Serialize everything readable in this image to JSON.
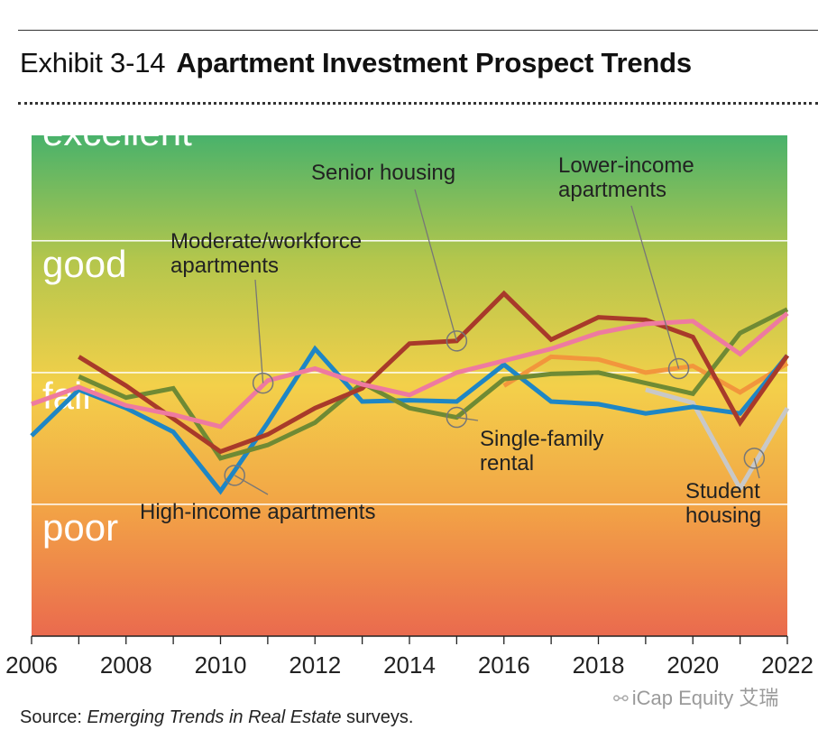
{
  "header": {
    "exhibit": "Exhibit 3-14",
    "title": "Apartment Investment Prospect Trends"
  },
  "source": {
    "prefix": "Source: ",
    "italic": "Emerging Trends in Real Estate",
    "suffix": " surveys."
  },
  "watermark": {
    "text": "iCap Equity 艾瑞",
    "icon": "wechat-icon"
  },
  "chart_data": {
    "type": "line",
    "title": "Apartment Investment Prospect Trends",
    "xlabel": "",
    "ylabel": "",
    "xlim": [
      2006,
      2022
    ],
    "ylim": [
      0.5,
      4.3
    ],
    "x_ticks": [
      2006,
      2008,
      2010,
      2012,
      2014,
      2016,
      2018,
      2020,
      2022
    ],
    "bands": [
      {
        "label": "excellent",
        "value": 4
      },
      {
        "label": "good",
        "value": 3
      },
      {
        "label": "fair",
        "value": 2
      },
      {
        "label": "poor",
        "value": 1
      }
    ],
    "grid": true,
    "background_gradient": [
      "#49b26b",
      "#b4c64c",
      "#f3d04a",
      "#f2a246",
      "#ea6a4e"
    ],
    "series": [
      {
        "name": "Student housing",
        "color": "#c8c8c8",
        "x": [
          2019,
          2020,
          2021,
          2022
        ],
        "y": [
          2.37,
          2.27,
          1.62,
          2.23
        ]
      },
      {
        "name": "Lower-income apartments",
        "color": "#f2963c",
        "x": [
          2016,
          2017,
          2018,
          2019,
          2020,
          2021,
          2022
        ],
        "y": [
          2.4,
          2.62,
          2.6,
          2.5,
          2.55,
          2.35,
          2.57
        ]
      },
      {
        "name": "High-income apartments",
        "color": "#1e86c5",
        "x": [
          2006,
          2007,
          2008,
          2009,
          2010,
          2011,
          2012,
          2013,
          2014,
          2015,
          2016,
          2017,
          2018,
          2019,
          2020,
          2021,
          2022
        ],
        "y": [
          2.02,
          2.37,
          2.23,
          2.05,
          1.6,
          2.12,
          2.68,
          2.28,
          2.29,
          2.28,
          2.56,
          2.28,
          2.26,
          2.19,
          2.24,
          2.19,
          2.63
        ]
      },
      {
        "name": "Single-family rental",
        "color": "#6f8a34",
        "x": [
          2007,
          2008,
          2009,
          2010,
          2011,
          2012,
          2013,
          2014,
          2015,
          2016,
          2017,
          2018,
          2019,
          2020,
          2021,
          2022
        ],
        "y": [
          2.47,
          2.31,
          2.38,
          1.85,
          1.95,
          2.12,
          2.42,
          2.23,
          2.16,
          2.45,
          2.49,
          2.5,
          2.42,
          2.34,
          2.8,
          2.98
        ]
      },
      {
        "name": "Senior housing",
        "color": "#a83a2a",
        "x": [
          2007,
          2008,
          2009,
          2010,
          2011,
          2012,
          2013,
          2014,
          2015,
          2016,
          2017,
          2018,
          2019,
          2020,
          2021,
          2022
        ],
        "y": [
          2.62,
          2.4,
          2.15,
          1.9,
          2.03,
          2.23,
          2.38,
          2.72,
          2.74,
          3.1,
          2.75,
          2.92,
          2.9,
          2.77,
          2.12,
          2.63
        ]
      },
      {
        "name": "Moderate/workforce apartments",
        "color": "#ee7aa0",
        "x": [
          2006,
          2007,
          2008,
          2009,
          2010,
          2011,
          2012,
          2013,
          2014,
          2015,
          2016,
          2017,
          2018,
          2019,
          2020,
          2021,
          2022
        ],
        "y": [
          2.26,
          2.39,
          2.25,
          2.18,
          2.09,
          2.44,
          2.53,
          2.41,
          2.33,
          2.5,
          2.59,
          2.68,
          2.8,
          2.87,
          2.89,
          2.64,
          2.95
        ]
      }
    ],
    "annotations": [
      {
        "name": "High-income apartments",
        "lines": [
          "High-income apartments"
        ],
        "point_x": 2010.3,
        "point_y": 1.72
      },
      {
        "name": "Moderate/workforce apartments",
        "lines": [
          "Moderate/workforce",
          "apartments"
        ],
        "point_x": 2010.9,
        "point_y": 2.42
      },
      {
        "name": "Senior housing",
        "lines": [
          "Senior housing"
        ],
        "point_x": 2015.0,
        "point_y": 2.74
      },
      {
        "name": "Single-family rental",
        "lines": [
          "Single-family",
          "rental"
        ],
        "point_x": 2015.0,
        "point_y": 2.16
      },
      {
        "name": "Lower-income apartments",
        "lines": [
          "Lower-income",
          "apartments"
        ],
        "point_x": 2019.7,
        "point_y": 2.53
      },
      {
        "name": "Student housing",
        "lines": [
          "Student",
          "housing"
        ],
        "point_x": 2021.3,
        "point_y": 1.85
      }
    ]
  }
}
